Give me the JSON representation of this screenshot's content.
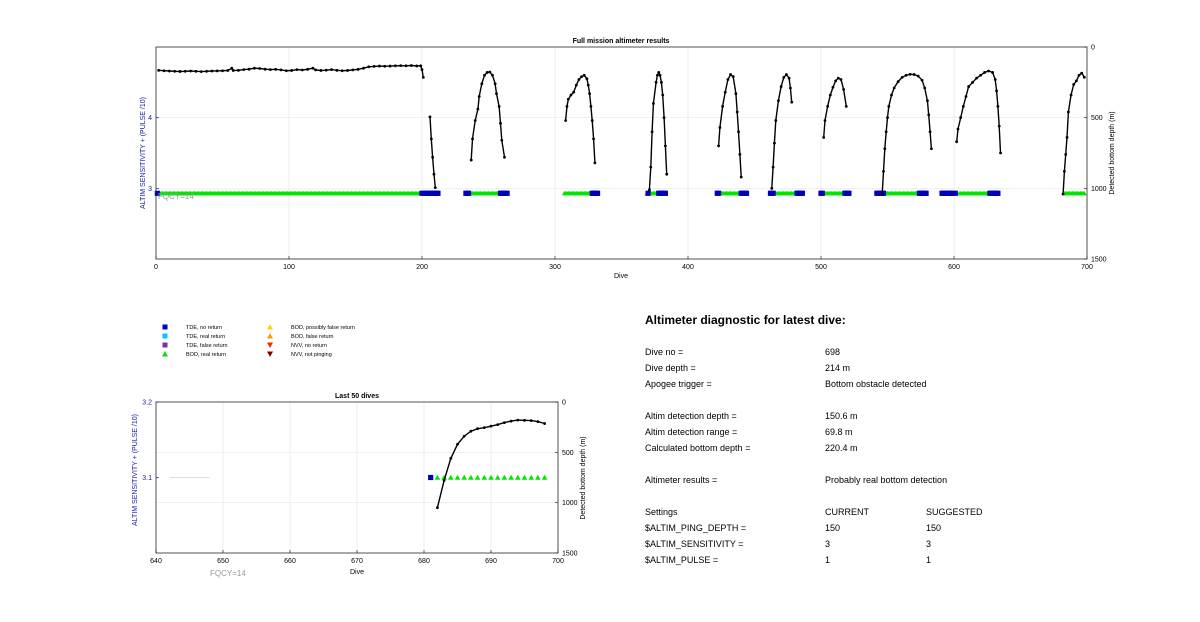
{
  "colors": {
    "tde_no_return": "#0000b4",
    "tde_real_return": "#00c8ff",
    "tde_false_return": "#7a2fb0",
    "bod_real_return": "#00e600",
    "bod_possibly_false_return": "#ffd400",
    "bod_false_return": "#ff9900",
    "nvv_no_return": "#e62e00",
    "nvv_not_pinging": "#800000",
    "left_axis": "#1a1aa6",
    "fqcy_label": "#9a9a9a",
    "depth_line": "#000000"
  },
  "chart_data": [
    {
      "type": "line",
      "title": "Full mission altimeter results",
      "xlabel": "Dive",
      "ylabel_left": "ALTIM SENSITIVITY + (PULSE /10)",
      "ylabel_right": "Detected bottom depth (m)",
      "annotation": "FQCY=14",
      "xlim": [
        0,
        700
      ],
      "ylim_left": [
        2,
        5
      ],
      "ylim_right": [
        1500,
        0
      ],
      "right_axis_reversed": true,
      "grid": true,
      "x_ticks": [
        "0",
        "100",
        "200",
        "300",
        "400",
        "500",
        "600",
        "700"
      ],
      "y_left_ticks": [
        "3",
        "4"
      ],
      "y_right_ticks": [
        "0",
        "500",
        "1000",
        "1500"
      ],
      "series": [
        {
          "name": "Detected bottom depth",
          "axis": "right",
          "marker": "dot-line",
          "segments": [
            {
              "x": [
                2,
                6,
                10,
                14,
                18,
                22,
                26,
                30,
                34,
                38,
                42,
                46,
                50,
                54,
                57,
                58,
                62,
                66,
                70,
                74,
                78,
                82,
                86,
                90,
                94,
                98,
                102,
                106,
                110,
                114,
                118,
                120,
                124,
                128,
                132,
                136,
                140,
                144,
                148,
                152,
                156,
                160,
                164,
                168,
                172,
                176,
                180,
                184,
                188,
                192,
                196,
                199,
                200,
                201
              ],
              "y": [
                165,
                168,
                170,
                172,
                173,
                172,
                170,
                172,
                174,
                172,
                170,
                169,
                168,
                166,
                150,
                166,
                165,
                160,
                157,
                150,
                152,
                157,
                160,
                158,
                162,
                168,
                166,
                160,
                163,
                158,
                150,
                162,
                166,
                164,
                160,
                165,
                168,
                166,
                162,
                158,
                150,
                140,
                137,
                135,
                136,
                135,
                133,
                132,
                133,
                131,
                134,
                133,
                160,
                215
              ]
            },
            {
              "x": [
                206,
                207,
                208,
                209,
                210
              ],
              "y": [
                495,
                650,
                780,
                900,
                995
              ]
            },
            {
              "x": [
                237,
                238,
                240,
                242,
                243,
                245,
                247,
                249,
                251,
                253,
                255,
                256,
                258,
                259,
                260,
                262
              ],
              "y": [
                800,
                650,
                520,
                440,
                350,
                260,
                200,
                180,
                177,
                200,
                260,
                330,
                420,
                540,
                660,
                780
              ]
            },
            {
              "x": [
                308,
                309,
                310,
                312,
                314,
                316,
                318,
                320,
                322,
                324,
                325,
                326,
                327,
                328,
                329,
                330
              ],
              "y": [
                520,
                420,
                370,
                340,
                320,
                270,
                230,
                210,
                200,
                225,
                270,
                330,
                420,
                520,
                650,
                820
              ]
            },
            {
              "x": [
                371,
                372,
                373,
                374,
                376,
                377,
                378,
                379,
                380,
                381,
                382,
                383,
                384
              ],
              "y": [
                1010,
                850,
                600,
                400,
                250,
                200,
                180,
                200,
                250,
                340,
                500,
                700,
                900
              ]
            },
            {
              "x": [
                423,
                424,
                426,
                428,
                430,
                432,
                434,
                436,
                437,
                438,
                439,
                440
              ],
              "y": [
                700,
                570,
                420,
                320,
                230,
                195,
                210,
                330,
                460,
                600,
                760,
                920
              ]
            },
            {
              "x": [
                463,
                464,
                465,
                466,
                468,
                470,
                472,
                474,
                476,
                477,
                478
              ],
              "y": [
                1000,
                850,
                680,
                520,
                380,
                280,
                215,
                195,
                220,
                290,
                390
              ]
            },
            {
              "x": [
                502,
                503,
                505,
                507,
                509,
                511,
                513,
                515,
                517,
                519
              ],
              "y": [
                640,
                520,
                420,
                340,
                285,
                240,
                220,
                230,
                300,
                420
              ]
            },
            {
              "x": [
                546,
                547,
                548,
                549,
                550,
                551,
                553,
                555,
                558,
                561,
                564,
                567,
                570,
                573,
                576,
                578,
                580,
                581,
                582,
                583
              ],
              "y": [
                1040,
                880,
                720,
                600,
                500,
                420,
                340,
                290,
                245,
                215,
                200,
                193,
                195,
                205,
                235,
                290,
                380,
                480,
                600,
                720
              ]
            },
            {
              "x": [
                602,
                603,
                605,
                607,
                609,
                611,
                614,
                617,
                620,
                623,
                626,
                629,
                631,
                632,
                633,
                634,
                635
              ],
              "y": [
                670,
                580,
                500,
                420,
                350,
                280,
                250,
                220,
                200,
                180,
                170,
                180,
                230,
                310,
                420,
                560,
                750
              ]
            },
            {
              "x": [
                682,
                683,
                684,
                685,
                686,
                688,
                690,
                692,
                694,
                696,
                698
              ],
              "y": [
                1040,
                880,
                760,
                640,
                460,
                340,
                265,
                240,
                200,
                185,
                214
              ]
            }
          ]
        },
        {
          "name": "TDE, no return",
          "axis": "left",
          "marker": "square",
          "x": [
            1,
            200,
            202,
            203,
            205,
            206,
            207,
            208,
            209,
            210,
            211,
            212,
            233,
            234,
            235,
            259,
            260,
            261,
            262,
            263,
            264,
            328,
            329,
            330,
            331,
            332,
            370,
            378,
            379,
            380,
            381,
            382,
            383,
            422,
            423,
            440,
            441,
            442,
            443,
            444,
            462,
            463,
            464,
            482,
            483,
            484,
            485,
            486,
            500,
            501,
            518,
            519,
            520,
            521,
            542,
            543,
            544,
            545,
            546,
            547,
            574,
            575,
            576,
            577,
            578,
            579,
            591,
            592,
            593,
            594,
            595,
            596,
            597,
            598,
            599,
            601,
            627,
            628,
            629,
            630,
            631,
            632,
            633
          ],
          "y": [
            2.93,
            2.93,
            2.93,
            2.93,
            2.93,
            2.93,
            2.93,
            2.93,
            2.93,
            2.93,
            2.93,
            2.93,
            2.93,
            2.93,
            2.93,
            2.93,
            2.93,
            2.93,
            2.93,
            2.93,
            2.93,
            2.93,
            2.93,
            2.93,
            2.93,
            2.93,
            2.93,
            2.93,
            2.93,
            2.93,
            2.93,
            2.93,
            2.93,
            2.93,
            2.93,
            2.93,
            2.93,
            2.93,
            2.93,
            2.93,
            2.93,
            2.93,
            2.93,
            2.93,
            2.93,
            2.93,
            2.93,
            2.93,
            2.93,
            2.93,
            2.93,
            2.93,
            2.93,
            2.93,
            2.93,
            2.93,
            2.93,
            2.93,
            2.93,
            2.93,
            2.93,
            2.93,
            2.93,
            2.93,
            2.93,
            2.93,
            2.93,
            2.93,
            2.93,
            2.93,
            2.93,
            2.93,
            2.93,
            2.93,
            2.93,
            2.93,
            2.93,
            2.93,
            2.93,
            2.93,
            2.93,
            2.93,
            2.93
          ]
        },
        {
          "name": "BOD, real return",
          "axis": "left",
          "marker": "triangle",
          "ranges": [
            [
              3,
              199
            ],
            [
              207,
              211
            ],
            [
              236,
              258
            ],
            [
              307,
              327
            ],
            [
              369,
              377
            ],
            [
              424,
              439
            ],
            [
              465,
              481
            ],
            [
              502,
              517
            ],
            [
              548,
              573
            ],
            [
              604,
              626
            ],
            [
              683,
              698
            ]
          ],
          "y": 2.93
        }
      ]
    },
    {
      "type": "line",
      "title": "Last 50 dives",
      "xlabel": "Dive",
      "ylabel_left": "ALTIM SENSITIVITY + (PULSE /10)",
      "ylabel_right": "Detected bottom depth (m)",
      "annotation": "FQCY=14",
      "xlim": [
        640,
        700
      ],
      "ylim_left": [
        3,
        3.2
      ],
      "ylim_right": [
        1500,
        0
      ],
      "right_axis_reversed": true,
      "grid": true,
      "x_ticks": [
        "640",
        "650",
        "660",
        "670",
        "680",
        "690",
        "700"
      ],
      "y_left_ticks": [
        "3.1",
        "3.2"
      ],
      "y_right_ticks": [
        "0",
        "500",
        "1000",
        "1500"
      ],
      "sensitivity_reference_line": {
        "x": [
          642,
          648
        ],
        "y": 3.1
      },
      "series": [
        {
          "name": "Detected bottom depth",
          "axis": "right",
          "marker": "dot-line",
          "x": [
            682,
            683,
            684,
            685,
            686,
            687,
            688,
            689,
            690,
            691,
            692,
            693,
            694,
            695,
            696,
            697,
            698
          ],
          "y": [
            1050,
            780,
            560,
            420,
            340,
            290,
            265,
            255,
            240,
            225,
            205,
            190,
            180,
            182,
            185,
            195,
            214
          ]
        },
        {
          "name": "TDE, no return",
          "axis": "left",
          "marker": "square",
          "x": [
            681
          ],
          "y": [
            3.1
          ]
        },
        {
          "name": "BOD, real return",
          "axis": "left",
          "marker": "triangle",
          "x": [
            682,
            683,
            684,
            685,
            686,
            687,
            688,
            689,
            690,
            691,
            692,
            693,
            694,
            695,
            696,
            697,
            698
          ],
          "y": [
            3.1,
            3.1,
            3.1,
            3.1,
            3.1,
            3.1,
            3.1,
            3.1,
            3.1,
            3.1,
            3.1,
            3.1,
            3.1,
            3.1,
            3.1,
            3.1,
            3.1
          ]
        }
      ]
    }
  ],
  "legend": [
    {
      "label": "TDE, no return",
      "marker": "square",
      "color": "#0000b4"
    },
    {
      "label": "TDE, real return",
      "marker": "square",
      "color": "#00c8ff"
    },
    {
      "label": "TDE, false return",
      "marker": "square",
      "color": "#7a2fb0"
    },
    {
      "label": "BOD, real return",
      "marker": "triangle-up",
      "color": "#00e600"
    },
    {
      "label": "BOD, possibly false return",
      "marker": "triangle-up",
      "color": "#ffd400"
    },
    {
      "label": "BOD, false return",
      "marker": "triangle-up",
      "color": "#ff9900"
    },
    {
      "label": "NVV, no return",
      "marker": "triangle-down",
      "color": "#e62e00"
    },
    {
      "label": "NVV, not pinging",
      "marker": "triangle-down",
      "color": "#800000"
    }
  ],
  "diagnostic": {
    "title": "Altimeter diagnostic for latest dive:",
    "dive_no_label": "Dive no =",
    "dive_no": "698",
    "dive_depth_label": "Dive depth =",
    "dive_depth": "214 m",
    "apogee_label": "Apogee trigger =",
    "apogee": "Bottom obstacle detected",
    "det_depth_label": "Altim detection depth =",
    "det_depth": "150.6 m",
    "det_range_label": "Altim detection range =",
    "det_range": "69.8 m",
    "calc_depth_label": "Calculated bottom depth =",
    "calc_depth": "220.4 m",
    "results_label": "Altimeter results =",
    "results": "Probably real bottom detection",
    "settings_label": "Settings",
    "current_label": "CURRENT",
    "suggested_label": "SUGGESTED",
    "ping_depth_label": "$ALTIM_PING_DEPTH =",
    "ping_depth_current": "150",
    "ping_depth_suggested": "150",
    "sensitivity_label": "$ALTIM_SENSITIVITY =",
    "sensitivity_current": "3",
    "sensitivity_suggested": "3",
    "pulse_label": "$ALTIM_PULSE =",
    "pulse_current": "1",
    "pulse_suggested": "1"
  }
}
